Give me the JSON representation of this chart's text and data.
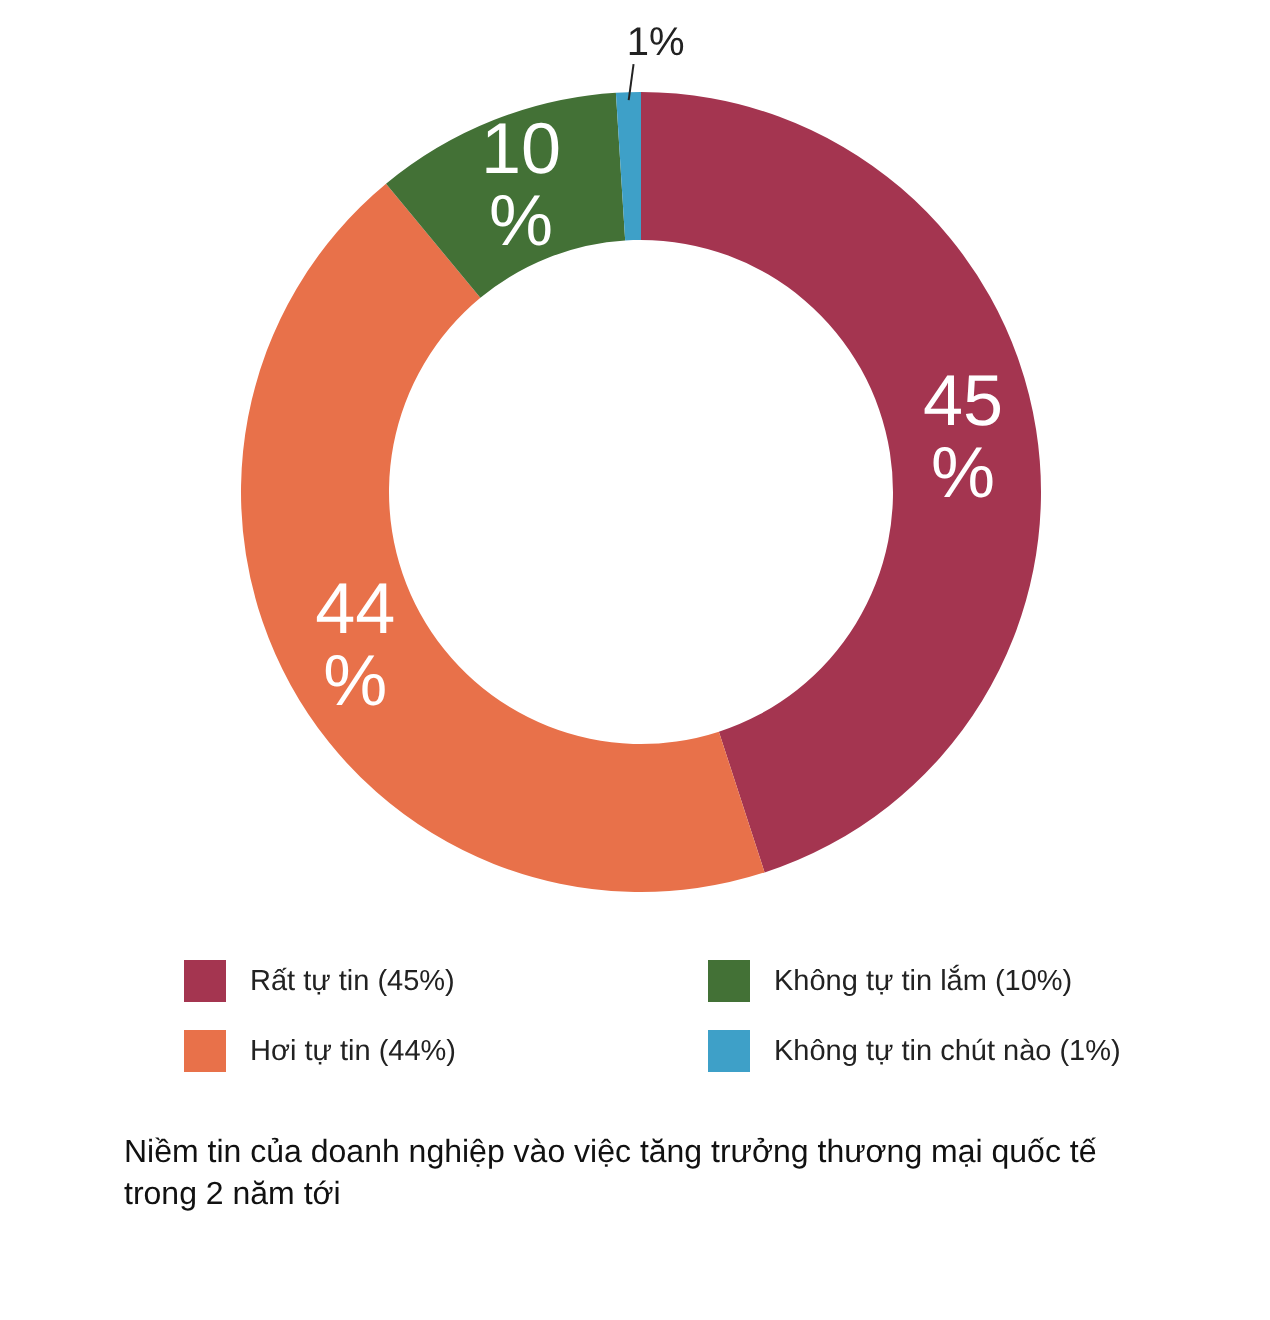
{
  "chart_data": {
    "type": "donut",
    "title": "Niềm tin của doanh nghiệp vào việc tăng trưởng thương mại quốc tế trong 2 năm tới",
    "categories": [
      "Rất tự tin (45%)",
      "Hơi tự tin (44%)",
      "Không tự tin lắm (10%)",
      "Không tự tin chút nào (1%)"
    ],
    "values": [
      45,
      44,
      10,
      1
    ],
    "colors": [
      "#a43550",
      "#e8714a",
      "#437136",
      "#3ea0c8"
    ],
    "value_labels": [
      "45%",
      "44%",
      "10%",
      "1%"
    ],
    "legend": "bottom"
  }
}
